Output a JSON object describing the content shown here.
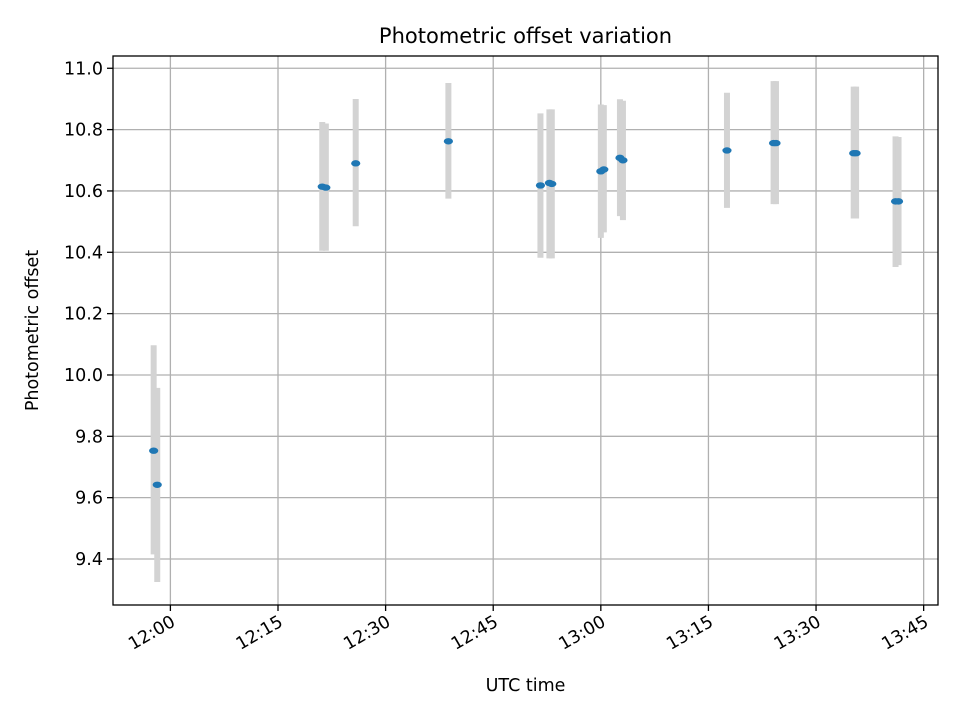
{
  "chart_data": {
    "type": "scatter",
    "title": "Photometric offset variation",
    "xlabel": "UTC time",
    "ylabel": "Photometric offset",
    "xlim": [
      "11:52",
      "13:47"
    ],
    "ylim": [
      9.25,
      11.04
    ],
    "x_ticks": [
      "12:00",
      "12:15",
      "12:30",
      "12:45",
      "13:00",
      "13:15",
      "13:30",
      "13:45"
    ],
    "y_ticks": [
      "9.4",
      "9.6",
      "9.8",
      "10.0",
      "10.2",
      "10.4",
      "10.6",
      "10.8",
      "11.0"
    ],
    "grid": true,
    "point_color": "#1f77b4",
    "errorbar_color": "#d3d3d3",
    "points": [
      {
        "time": "11:57:40",
        "value": 9.753,
        "err_low": 9.415,
        "err_high": 10.097
      },
      {
        "time": "11:58:10",
        "value": 9.642,
        "err_low": 9.325,
        "err_high": 9.958
      },
      {
        "time": "12:21:10",
        "value": 10.614,
        "err_low": 10.405,
        "err_high": 10.825
      },
      {
        "time": "12:21:40",
        "value": 10.611,
        "err_low": 10.405,
        "err_high": 10.82
      },
      {
        "time": "12:25:50",
        "value": 10.69,
        "err_low": 10.485,
        "err_high": 10.9
      },
      {
        "time": "12:38:45",
        "value": 10.762,
        "err_low": 10.575,
        "err_high": 10.952
      },
      {
        "time": "12:51:35",
        "value": 10.618,
        "err_low": 10.382,
        "err_high": 10.853
      },
      {
        "time": "12:52:50",
        "value": 10.626,
        "err_low": 10.38,
        "err_high": 10.866
      },
      {
        "time": "12:53:10",
        "value": 10.623,
        "err_low": 10.38,
        "err_high": 10.866
      },
      {
        "time": "13:00:00",
        "value": 10.664,
        "err_low": 10.447,
        "err_high": 10.882
      },
      {
        "time": "13:00:25",
        "value": 10.67,
        "err_low": 10.465,
        "err_high": 10.88
      },
      {
        "time": "13:02:40",
        "value": 10.708,
        "err_low": 10.518,
        "err_high": 10.899
      },
      {
        "time": "13:03:05",
        "value": 10.7,
        "err_low": 10.505,
        "err_high": 10.894
      },
      {
        "time": "13:17:35",
        "value": 10.732,
        "err_low": 10.545,
        "err_high": 10.92
      },
      {
        "time": "13:24:05",
        "value": 10.756,
        "err_low": 10.557,
        "err_high": 10.958
      },
      {
        "time": "13:24:25",
        "value": 10.756,
        "err_low": 10.557,
        "err_high": 10.958
      },
      {
        "time": "13:35:15",
        "value": 10.723,
        "err_low": 10.51,
        "err_high": 10.94
      },
      {
        "time": "13:35:35",
        "value": 10.723,
        "err_low": 10.51,
        "err_high": 10.94
      },
      {
        "time": "13:41:05",
        "value": 10.566,
        "err_low": 10.352,
        "err_high": 10.778
      },
      {
        "time": "13:41:30",
        "value": 10.566,
        "err_low": 10.358,
        "err_high": 10.776
      }
    ]
  }
}
